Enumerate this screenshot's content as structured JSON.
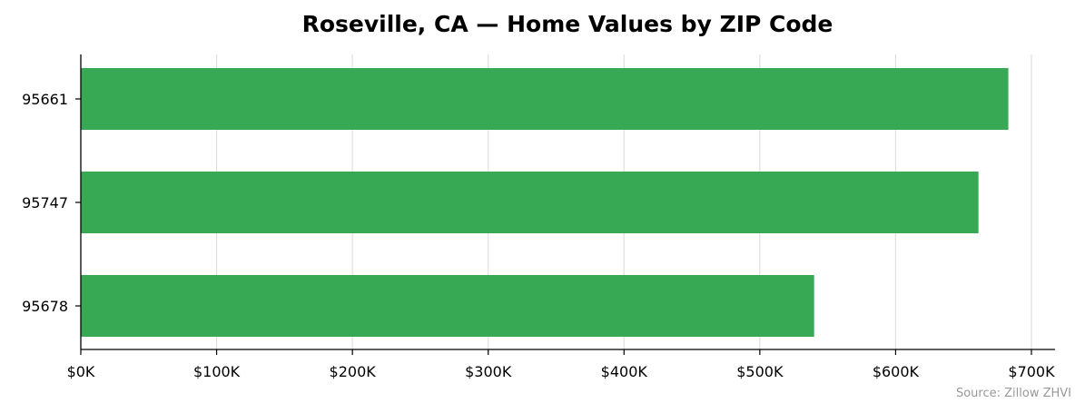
{
  "chart_data": {
    "type": "bar",
    "orientation": "horizontal",
    "title": "Roseville, CA — Home Values by ZIP Code",
    "categories": [
      "95661",
      "95747",
      "95678"
    ],
    "values": [
      683000,
      661000,
      540000
    ],
    "xlim": [
      0,
      717000
    ],
    "xticks": [
      0,
      100000,
      200000,
      300000,
      400000,
      500000,
      600000,
      700000
    ],
    "xtick_labels": [
      "$0K",
      "$100K",
      "$200K",
      "$300K",
      "$400K",
      "$500K",
      "$600K",
      "$700K"
    ],
    "xlabel": "",
    "ylabel": "",
    "grid": "x",
    "bar_color": "#37a954",
    "source": "Source: Zillow ZHVI"
  }
}
